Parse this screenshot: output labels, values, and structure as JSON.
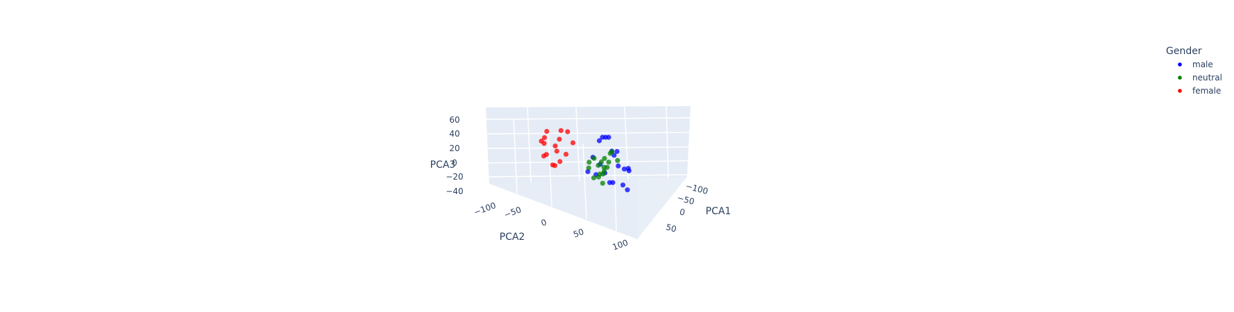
{
  "chart_data": {
    "type": "scatter",
    "legend": {
      "title": "Gender",
      "placement": "top-right"
    },
    "axes": {
      "x": {
        "label": "PCA1",
        "ticks": [
          "−100",
          "−50",
          "0",
          "50"
        ]
      },
      "y": {
        "label": "PCA2",
        "ticks": [
          "−100",
          "−50",
          "0",
          "50",
          "100"
        ]
      },
      "z": {
        "label": "PCA3",
        "ticks": [
          "60",
          "40",
          "20",
          "0",
          "−20",
          "−40"
        ]
      }
    },
    "series": [
      {
        "name": "male",
        "color": "#0000ff",
        "points": [
          [
            -60,
            40,
            60
          ],
          [
            -50,
            30,
            55
          ],
          [
            -40,
            20,
            50
          ],
          [
            -70,
            50,
            45
          ],
          [
            -30,
            10,
            40
          ],
          [
            -55,
            45,
            35
          ],
          [
            -20,
            30,
            30
          ],
          [
            -65,
            20,
            25
          ],
          [
            -45,
            60,
            20
          ],
          [
            -35,
            40,
            15
          ],
          [
            -25,
            50,
            10
          ],
          [
            -75,
            30,
            5
          ],
          [
            -60,
            10,
            0
          ],
          [
            -50,
            55,
            -5
          ],
          [
            -40,
            35,
            -10
          ],
          [
            -30,
            25,
            -15
          ],
          [
            -20,
            45,
            -20
          ],
          [
            -10,
            35,
            5
          ],
          [
            -70,
            40,
            10
          ],
          [
            -55,
            25,
            15
          ]
        ]
      },
      {
        "name": "neutral",
        "color": "#008000",
        "points": [
          [
            20,
            -10,
            0
          ],
          [
            30,
            -20,
            -10
          ],
          [
            40,
            -30,
            -20
          ],
          [
            10,
            -5,
            -15
          ],
          [
            25,
            -15,
            -25
          ],
          [
            35,
            -25,
            -30
          ],
          [
            15,
            -10,
            -35
          ],
          [
            45,
            -20,
            -20
          ],
          [
            50,
            -35,
            -40
          ],
          [
            20,
            -25,
            -5
          ],
          [
            30,
            -5,
            10
          ],
          [
            40,
            -15,
            -10
          ],
          [
            10,
            -20,
            -30
          ],
          [
            55,
            -30,
            -25
          ],
          [
            25,
            -35,
            -15
          ],
          [
            35,
            -10,
            5
          ],
          [
            15,
            -30,
            -20
          ],
          [
            45,
            -5,
            -5
          ]
        ]
      },
      {
        "name": "female",
        "color": "#ff0000",
        "points": [
          [
            -10,
            -80,
            10
          ],
          [
            0,
            -70,
            0
          ],
          [
            10,
            -60,
            -10
          ],
          [
            -20,
            -75,
            5
          ],
          [
            -5,
            -65,
            -5
          ],
          [
            5,
            -85,
            15
          ],
          [
            -15,
            -55,
            -15
          ],
          [
            15,
            -70,
            20
          ],
          [
            -25,
            -60,
            -20
          ],
          [
            0,
            -90,
            0
          ],
          [
            10,
            -50,
            10
          ],
          [
            -10,
            -65,
            -25
          ],
          [
            20,
            -75,
            5
          ],
          [
            -30,
            -70,
            -10
          ],
          [
            5,
            -55,
            25
          ],
          [
            -5,
            -80,
            -15
          ]
        ]
      }
    ]
  }
}
